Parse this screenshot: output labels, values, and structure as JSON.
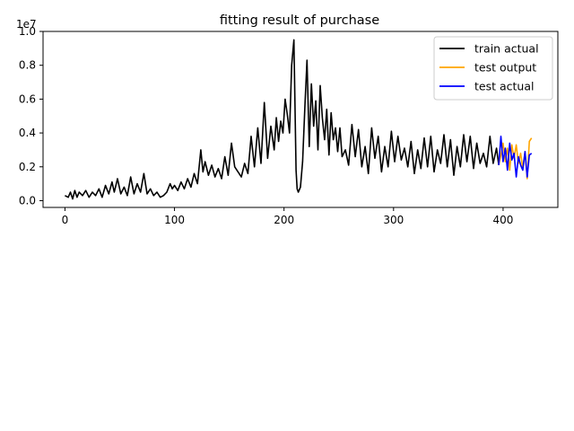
{
  "chart_data": {
    "type": "line",
    "title": "fitting result of purchase",
    "xlabel": "",
    "ylabel": "",
    "y_scale_label": "1e7",
    "xlim": [
      -20,
      450
    ],
    "ylim": [
      -0.04,
      1.0
    ],
    "x_ticks": [
      0,
      100,
      200,
      300,
      400
    ],
    "y_ticks": [
      0.0,
      0.2,
      0.4,
      0.6,
      0.8,
      1.0
    ],
    "x_tick_labels": [
      "0",
      "100",
      "200",
      "300",
      "400"
    ],
    "y_tick_labels": [
      "0.0",
      "0.2",
      "0.4",
      "0.6",
      "0.8",
      "1.0"
    ],
    "grid": false,
    "legend_position": "top-right",
    "series": [
      {
        "name": "train actual",
        "color": "#000000",
        "x": [
          0,
          3,
          5,
          7,
          9,
          11,
          13,
          16,
          19,
          22,
          25,
          28,
          31,
          34,
          37,
          40,
          43,
          45,
          48,
          51,
          54,
          57,
          60,
          63,
          66,
          69,
          72,
          75,
          78,
          81,
          84,
          87,
          90,
          93,
          96,
          98,
          100,
          103,
          106,
          109,
          112,
          115,
          118,
          121,
          124,
          126,
          128,
          131,
          134,
          137,
          140,
          143,
          146,
          149,
          152,
          155,
          158,
          161,
          164,
          167,
          170,
          173,
          176,
          179,
          182,
          185,
          188,
          191,
          193,
          195,
          197,
          199,
          201,
          203,
          205,
          207,
          209,
          211,
          212,
          213,
          215,
          217,
          219,
          221,
          223,
          225,
          227,
          229,
          231,
          233,
          235,
          237,
          239,
          241,
          243,
          245,
          247,
          249,
          251,
          253,
          256,
          259,
          262,
          265,
          268,
          271,
          274,
          277,
          280,
          283,
          286,
          289,
          292,
          295,
          298,
          301,
          304,
          307,
          310,
          313,
          316,
          319,
          322,
          325,
          328,
          331,
          334,
          337,
          340,
          343,
          346,
          349,
          352,
          355,
          358,
          361,
          364,
          367,
          370,
          373,
          376,
          379,
          382,
          385,
          388,
          391,
          394,
          396
        ],
        "y": [
          0.03,
          0.02,
          0.05,
          0.01,
          0.06,
          0.02,
          0.05,
          0.03,
          0.06,
          0.02,
          0.05,
          0.03,
          0.07,
          0.02,
          0.09,
          0.04,
          0.11,
          0.05,
          0.13,
          0.04,
          0.08,
          0.03,
          0.14,
          0.04,
          0.1,
          0.05,
          0.16,
          0.04,
          0.07,
          0.03,
          0.05,
          0.02,
          0.03,
          0.05,
          0.1,
          0.07,
          0.09,
          0.06,
          0.11,
          0.07,
          0.13,
          0.08,
          0.16,
          0.1,
          0.3,
          0.17,
          0.23,
          0.15,
          0.21,
          0.14,
          0.19,
          0.13,
          0.26,
          0.15,
          0.34,
          0.2,
          0.17,
          0.14,
          0.22,
          0.16,
          0.38,
          0.2,
          0.43,
          0.22,
          0.58,
          0.25,
          0.44,
          0.3,
          0.49,
          0.35,
          0.47,
          0.4,
          0.6,
          0.51,
          0.4,
          0.8,
          0.95,
          0.18,
          0.07,
          0.05,
          0.08,
          0.23,
          0.55,
          0.83,
          0.32,
          0.69,
          0.44,
          0.59,
          0.3,
          0.68,
          0.49,
          0.36,
          0.54,
          0.27,
          0.52,
          0.36,
          0.43,
          0.29,
          0.43,
          0.26,
          0.3,
          0.21,
          0.45,
          0.26,
          0.42,
          0.2,
          0.32,
          0.16,
          0.43,
          0.25,
          0.38,
          0.17,
          0.32,
          0.2,
          0.41,
          0.23,
          0.38,
          0.24,
          0.31,
          0.2,
          0.35,
          0.16,
          0.3,
          0.19,
          0.37,
          0.2,
          0.38,
          0.17,
          0.3,
          0.22,
          0.39,
          0.2,
          0.36,
          0.15,
          0.32,
          0.2,
          0.39,
          0.23,
          0.38,
          0.19,
          0.34,
          0.22,
          0.28,
          0.2,
          0.38,
          0.22,
          0.31,
          0.21
        ]
      },
      {
        "name": "test output",
        "color": "#ffa500",
        "x": [
          396,
          398,
          400,
          402,
          404,
          406,
          408,
          410,
          412,
          414,
          416,
          418,
          420,
          422,
          424,
          426
        ],
        "y": [
          0.21,
          0.27,
          0.34,
          0.23,
          0.31,
          0.18,
          0.33,
          0.25,
          0.33,
          0.22,
          0.28,
          0.19,
          0.29,
          0.13,
          0.35,
          0.37
        ]
      },
      {
        "name": "test actual",
        "color": "#0000ff",
        "x": [
          396,
          398,
          400,
          402,
          404,
          406,
          408,
          410,
          412,
          414,
          416,
          418,
          420,
          422,
          424,
          426
        ],
        "y": [
          0.21,
          0.38,
          0.23,
          0.31,
          0.18,
          0.34,
          0.24,
          0.28,
          0.14,
          0.26,
          0.21,
          0.18,
          0.29,
          0.14,
          0.27,
          0.28
        ]
      }
    ]
  }
}
